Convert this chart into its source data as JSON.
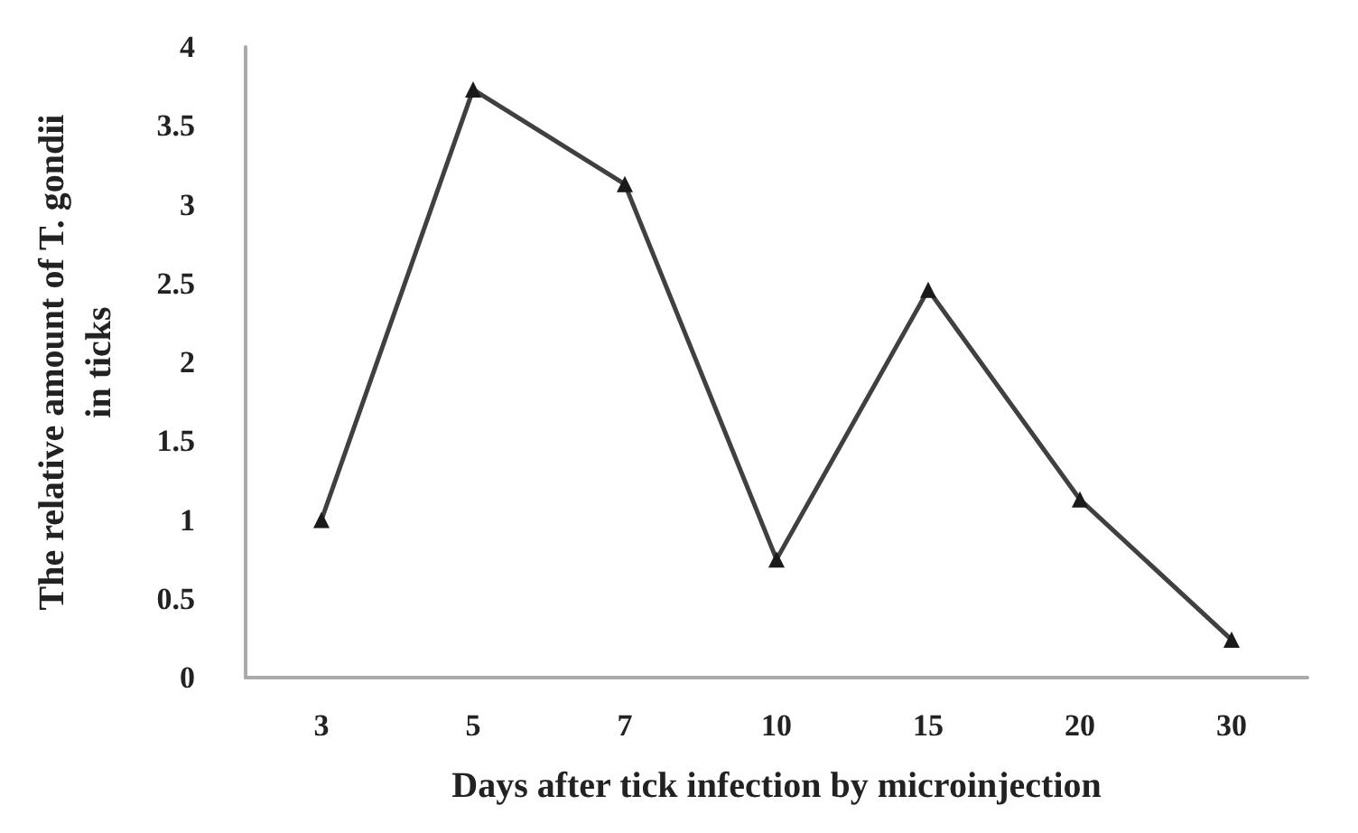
{
  "chart_data": {
    "type": "line",
    "xlabel": "Days after tick infection by microinjection",
    "ylabel": "The relative amount of T. gondii\nin ticks",
    "categories": [
      "3",
      "5",
      "7",
      "10",
      "15",
      "20",
      "30"
    ],
    "series": [
      {
        "color": "#404040",
        "values": [
          1.0,
          3.73,
          3.13,
          0.75,
          2.46,
          1.13,
          0.24
        ]
      }
    ],
    "ylim": [
      0,
      4
    ],
    "yticks": [
      0,
      0.5,
      1,
      1.5,
      2,
      2.5,
      3,
      3.5,
      4
    ],
    "grid": false,
    "marker": "triangle",
    "line_style": "solid"
  }
}
